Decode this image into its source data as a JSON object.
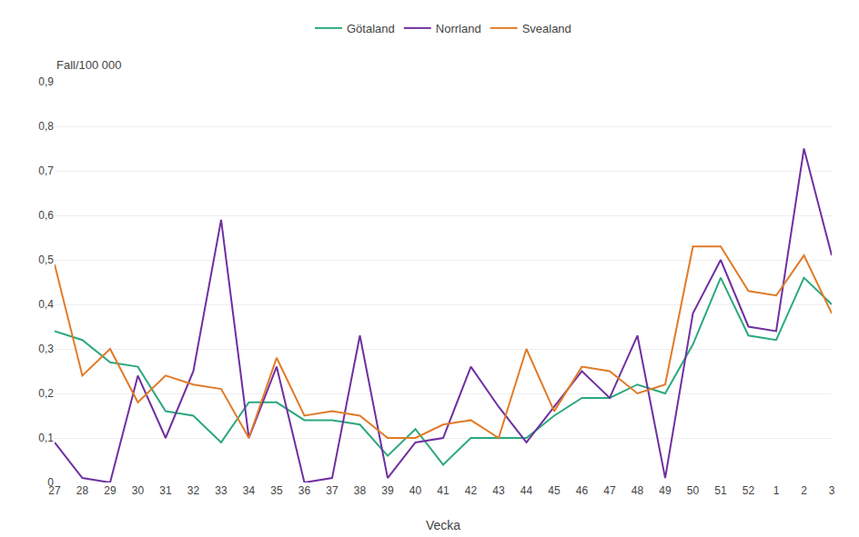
{
  "chart_data": {
    "type": "line",
    "xlabel": "Vecka",
    "ylabel": "Fall/100 000",
    "categories": [
      "27",
      "28",
      "29",
      "30",
      "31",
      "32",
      "33",
      "34",
      "35",
      "36",
      "37",
      "38",
      "39",
      "40",
      "41",
      "42",
      "43",
      "44",
      "45",
      "46",
      "47",
      "48",
      "49",
      "50",
      "51",
      "52",
      "1",
      "2",
      "3"
    ],
    "series": [
      {
        "name": "Götaland",
        "color": "#2ca87f",
        "values": [
          0.34,
          0.32,
          0.27,
          0.26,
          0.16,
          0.15,
          0.09,
          0.18,
          0.18,
          0.14,
          0.14,
          0.13,
          0.06,
          0.12,
          0.04,
          0.1,
          0.1,
          0.1,
          0.15,
          0.19,
          0.19,
          0.22,
          0.2,
          0.31,
          0.46,
          0.33,
          0.32,
          0.46,
          0.4
        ]
      },
      {
        "name": "Norrland",
        "color": "#7030a0",
        "values": [
          0.09,
          0.01,
          0.0,
          0.24,
          0.1,
          0.25,
          0.59,
          0.1,
          0.26,
          0.0,
          0.01,
          0.33,
          0.01,
          0.09,
          0.1,
          0.26,
          0.17,
          0.09,
          0.17,
          0.25,
          0.19,
          0.33,
          0.01,
          0.38,
          0.5,
          0.35,
          0.34,
          0.75,
          0.51
        ]
      },
      {
        "name": "Svealand",
        "color": "#e07b29",
        "values": [
          0.49,
          0.24,
          0.3,
          0.18,
          0.24,
          0.22,
          0.21,
          0.1,
          0.28,
          0.15,
          0.16,
          0.15,
          0.1,
          0.1,
          0.13,
          0.14,
          0.1,
          0.3,
          0.16,
          0.26,
          0.25,
          0.2,
          0.22,
          0.53,
          0.53,
          0.43,
          0.42,
          0.51,
          0.38
        ]
      }
    ],
    "ylim": [
      0,
      0.9
    ],
    "yticks": [
      0,
      {
        "value": 0.1,
        "label": "0,1"
      },
      {
        "value": 0.2,
        "label": "0,2"
      },
      {
        "value": 0.3,
        "label": "0,3"
      },
      {
        "value": 0.4,
        "label": "0,4"
      },
      {
        "value": 0.5,
        "label": "0,5"
      },
      {
        "value": 0.6,
        "label": "0,6"
      },
      {
        "value": 0.7,
        "label": "0,7"
      },
      {
        "value": 0.8,
        "label": "0,8"
      },
      {
        "value": 0.9,
        "label": "0,9"
      }
    ],
    "grid": "y",
    "legend": "top"
  }
}
